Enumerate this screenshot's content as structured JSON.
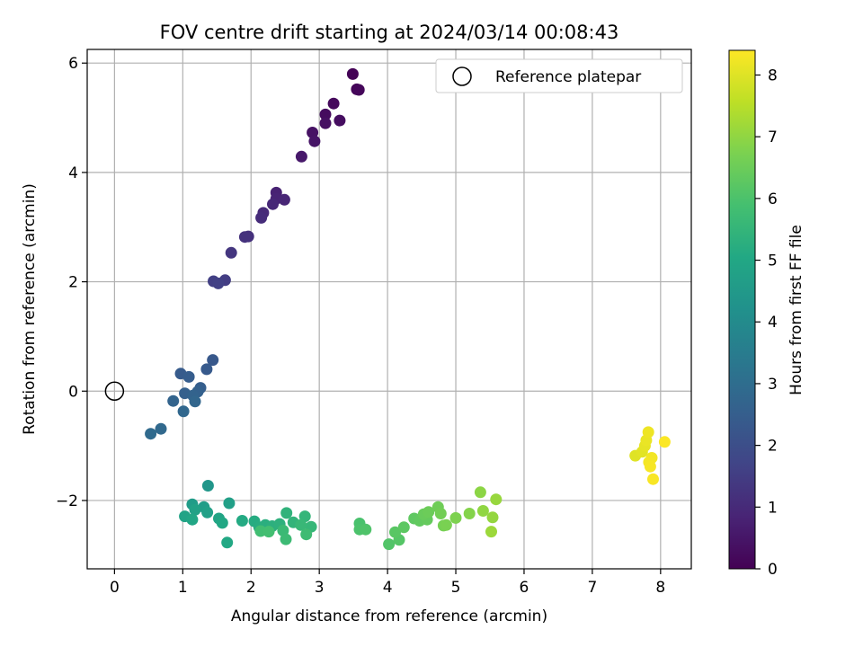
{
  "chart_data": {
    "type": "scatter",
    "title": "FOV centre drift starting at 2024/03/14 00:08:43",
    "xlabel": "Angular distance from reference (arcmin)",
    "ylabel": "Rotation from reference (arcmin)",
    "xlim": [
      -0.4,
      8.45
    ],
    "ylim": [
      -3.25,
      6.25
    ],
    "xticks": [
      0,
      1,
      2,
      3,
      4,
      5,
      6,
      7,
      8
    ],
    "yticks": [
      -2,
      0,
      2,
      4,
      6
    ],
    "grid": true,
    "legend": {
      "placement": "upper-right",
      "entries": [
        "Reference platepar"
      ]
    },
    "reference_point": {
      "x": 0,
      "y": 0,
      "label": "Reference platepar"
    },
    "colorbar": {
      "label": "Hours from first FF file",
      "colormap": "viridis",
      "range": [
        0,
        8.4
      ],
      "ticks": [
        0,
        1,
        2,
        3,
        4,
        5,
        6,
        7,
        8
      ]
    },
    "series": [
      {
        "points": [
          [
            3.49,
            5.8,
            0.05
          ],
          [
            3.55,
            5.52,
            0.1
          ],
          [
            3.58,
            5.51,
            0.15
          ],
          [
            3.21,
            5.26,
            0.2
          ],
          [
            3.09,
            5.06,
            0.25
          ],
          [
            3.3,
            4.95,
            0.3
          ],
          [
            3.09,
            4.9,
            0.35
          ],
          [
            2.9,
            4.73,
            0.4
          ],
          [
            2.93,
            4.57,
            0.45
          ],
          [
            2.74,
            4.29,
            0.55
          ],
          [
            2.37,
            3.63,
            0.8
          ],
          [
            2.37,
            3.52,
            0.85
          ],
          [
            2.49,
            3.5,
            0.9
          ],
          [
            2.32,
            3.42,
            0.95
          ],
          [
            2.18,
            3.26,
            1.0
          ],
          [
            2.15,
            3.17,
            1.05
          ],
          [
            1.96,
            2.83,
            1.15
          ],
          [
            1.91,
            2.82,
            1.2
          ],
          [
            1.71,
            2.53,
            1.3
          ],
          [
            1.62,
            2.03,
            1.5
          ],
          [
            1.45,
            2.01,
            1.55
          ],
          [
            1.52,
            1.97,
            1.6
          ],
          [
            1.44,
            0.57,
            2.3
          ],
          [
            1.35,
            0.4,
            2.35
          ],
          [
            0.97,
            0.32,
            2.4
          ],
          [
            1.09,
            0.26,
            2.45
          ],
          [
            1.26,
            0.06,
            2.5
          ],
          [
            1.03,
            -0.04,
            2.55
          ],
          [
            1.22,
            -0.01,
            2.6
          ],
          [
            1.15,
            -0.08,
            2.65
          ],
          [
            0.86,
            -0.18,
            2.7
          ],
          [
            1.18,
            -0.19,
            2.75
          ],
          [
            1.01,
            -0.37,
            2.8
          ],
          [
            0.68,
            -0.69,
            2.85
          ],
          [
            0.53,
            -0.78,
            2.9
          ],
          [
            1.37,
            -1.73,
            4.4
          ],
          [
            1.14,
            -2.07,
            4.6
          ],
          [
            1.31,
            -2.12,
            4.65
          ],
          [
            1.68,
            -2.05,
            4.7
          ],
          [
            1.36,
            -2.22,
            4.75
          ],
          [
            1.18,
            -2.17,
            4.8
          ],
          [
            1.03,
            -2.29,
            4.85
          ],
          [
            1.53,
            -2.33,
            4.9
          ],
          [
            1.14,
            -2.35,
            4.95
          ],
          [
            1.58,
            -2.41,
            5.0
          ],
          [
            1.65,
            -2.77,
            5.05
          ],
          [
            1.87,
            -2.37,
            5.1
          ],
          [
            2.05,
            -2.38,
            5.15
          ],
          [
            2.12,
            -2.49,
            5.2
          ],
          [
            2.21,
            -2.45,
            5.25
          ],
          [
            2.31,
            -2.47,
            5.3
          ],
          [
            2.42,
            -2.43,
            5.35
          ],
          [
            2.52,
            -2.23,
            5.4
          ],
          [
            2.62,
            -2.4,
            5.45
          ],
          [
            2.79,
            -2.29,
            5.5
          ],
          [
            2.88,
            -2.48,
            5.55
          ],
          [
            2.73,
            -2.45,
            5.6
          ],
          [
            2.47,
            -2.55,
            5.65
          ],
          [
            2.51,
            -2.71,
            5.7
          ],
          [
            2.81,
            -2.62,
            5.75
          ],
          [
            2.14,
            -2.56,
            5.8
          ],
          [
            2.26,
            -2.57,
            5.85
          ],
          [
            3.59,
            -2.42,
            5.95
          ],
          [
            3.59,
            -2.53,
            6.0
          ],
          [
            3.68,
            -2.53,
            6.05
          ],
          [
            4.02,
            -2.8,
            6.1
          ],
          [
            4.17,
            -2.72,
            6.15
          ],
          [
            4.11,
            -2.58,
            6.2
          ],
          [
            4.24,
            -2.49,
            6.25
          ],
          [
            4.39,
            -2.33,
            6.3
          ],
          [
            4.47,
            -2.37,
            6.35
          ],
          [
            4.58,
            -2.35,
            6.4
          ],
          [
            4.53,
            -2.25,
            6.45
          ],
          [
            4.6,
            -2.21,
            6.5
          ],
          [
            4.74,
            -2.12,
            6.55
          ],
          [
            4.78,
            -2.24,
            6.6
          ],
          [
            4.82,
            -2.46,
            6.65
          ],
          [
            4.86,
            -2.45,
            6.7
          ],
          [
            5.0,
            -2.32,
            6.75
          ],
          [
            5.2,
            -2.24,
            6.85
          ],
          [
            5.36,
            -1.85,
            6.95
          ],
          [
            5.4,
            -2.19,
            7.0
          ],
          [
            5.54,
            -2.31,
            7.05
          ],
          [
            5.59,
            -1.98,
            7.1
          ],
          [
            5.52,
            -2.57,
            7.15
          ],
          [
            7.63,
            -1.18,
            8.0
          ],
          [
            7.73,
            -1.11,
            8.05
          ],
          [
            7.77,
            -1.0,
            8.1
          ],
          [
            7.79,
            -0.9,
            8.15
          ],
          [
            7.82,
            -0.75,
            8.2
          ],
          [
            7.87,
            -1.22,
            8.25
          ],
          [
            7.83,
            -1.3,
            8.28
          ],
          [
            7.85,
            -1.38,
            8.31
          ],
          [
            7.89,
            -1.61,
            8.34
          ],
          [
            8.06,
            -0.93,
            8.38
          ]
        ]
      }
    ]
  }
}
